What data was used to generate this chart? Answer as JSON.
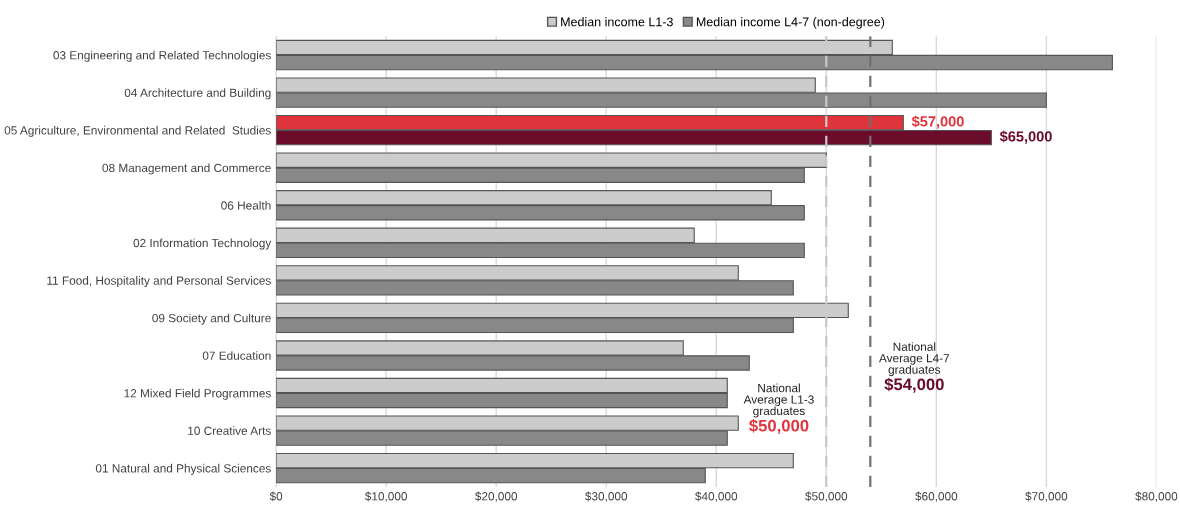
{
  "chart_data": {
    "type": "bar",
    "orientation": "horizontal",
    "categories": [
      "03 Engineering and Related Technologies",
      "04 Architecture and Building",
      "05 Agriculture, Environmental and Related  Studies",
      "08 Management and Commerce",
      "06 Health",
      "02 Information Technology",
      "11 Food, Hospitality and Personal Services",
      "09 Society and Culture",
      "07 Education",
      "12 Mixed Field Programmes",
      "10 Creative Arts",
      "01 Natural and Physical Sciences"
    ],
    "series": [
      {
        "name": "Median income L1-3",
        "color": "#cccccc",
        "colors": [
          "#cccccc",
          "#cccccc",
          "#e0343c",
          "#cccccc",
          "#cccccc",
          "#cccccc",
          "#cccccc",
          "#cccccc",
          "#cccccc",
          "#cccccc",
          "#cccccc",
          "#cccccc"
        ],
        "values": [
          56000,
          49000,
          57000,
          50000,
          45000,
          38000,
          42000,
          52000,
          37000,
          41000,
          42000,
          47000
        ],
        "value_labels": [
          null,
          null,
          "$57,000",
          null,
          null,
          null,
          null,
          null,
          null,
          null,
          null,
          null
        ]
      },
      {
        "name": "Median income L4-7 (non-degree)",
        "color": "#888888",
        "colors": [
          "#888888",
          "#888888",
          "#6a0c2a",
          "#888888",
          "#888888",
          "#888888",
          "#888888",
          "#888888",
          "#888888",
          "#888888",
          "#888888",
          "#888888"
        ],
        "values": [
          76000,
          70000,
          65000,
          48000,
          48000,
          48000,
          47000,
          47000,
          43000,
          41000,
          41000,
          39000
        ],
        "value_labels": [
          null,
          null,
          "$65,000",
          null,
          null,
          null,
          null,
          null,
          null,
          null,
          null,
          null
        ]
      }
    ],
    "xlim": [
      0,
      80000
    ],
    "xticks": [
      {
        "value": 0,
        "label": "$0"
      },
      {
        "value": 10000,
        "label": "$10,000"
      },
      {
        "value": 20000,
        "label": "$20,000"
      },
      {
        "value": 30000,
        "label": "$30,000"
      },
      {
        "value": 40000,
        "label": "$40,000"
      },
      {
        "value": 50000,
        "label": "$50,000"
      },
      {
        "value": 60000,
        "label": "$60,000"
      },
      {
        "value": 70000,
        "label": "$70,000"
      },
      {
        "value": 80000,
        "label": "$80,000"
      }
    ],
    "ref_lines": [
      {
        "axis": "x",
        "value": 50000,
        "label": "National\nAverage L1-3\ngraduates\n$50,000",
        "color": "#c8c8c8",
        "line_style": "dashed"
      },
      {
        "axis": "x",
        "value": 54000,
        "label": "National\nAverage L4-7\ngraduates\n$54,000",
        "color": "#707070",
        "line_style": "dashed"
      }
    ],
    "grid": "x",
    "legend": "top"
  }
}
